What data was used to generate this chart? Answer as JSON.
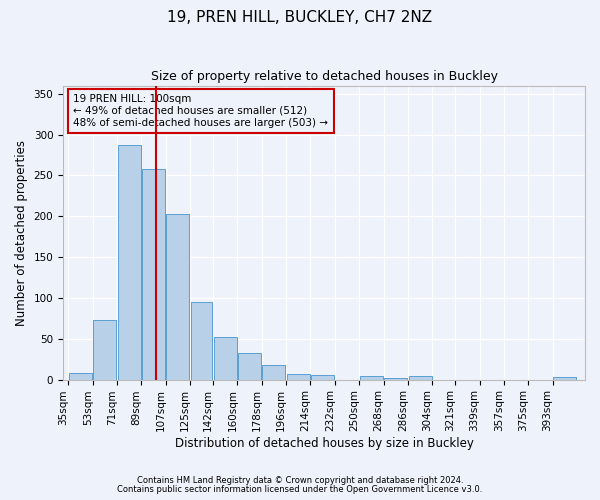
{
  "title1": "19, PREN HILL, BUCKLEY, CH7 2NZ",
  "title2": "Size of property relative to detached houses in Buckley",
  "xlabel": "Distribution of detached houses by size in Buckley",
  "ylabel": "Number of detached properties",
  "footnote1": "Contains HM Land Registry data © Crown copyright and database right 2024.",
  "footnote2": "Contains public sector information licensed under the Open Government Licence v3.0.",
  "annotation_line1": "19 PREN HILL: 100sqm",
  "annotation_line2": "← 49% of detached houses are smaller (512)",
  "annotation_line3": "48% of semi-detached houses are larger (503) →",
  "bar_color": "#b8d0e8",
  "bar_edge_color": "#5a9fd4",
  "red_line_x": 100,
  "red_line_color": "#cc0000",
  "categories": [
    "35sqm",
    "53sqm",
    "71sqm",
    "89sqm",
    "107sqm",
    "125sqm",
    "142sqm",
    "160sqm",
    "178sqm",
    "196sqm",
    "214sqm",
    "232sqm",
    "250sqm",
    "268sqm",
    "286sqm",
    "304sqm",
    "321sqm",
    "339sqm",
    "357sqm",
    "375sqm",
    "393sqm"
  ],
  "bin_edges": [
    35,
    53,
    71,
    89,
    107,
    125,
    142,
    160,
    178,
    196,
    214,
    232,
    250,
    268,
    286,
    304,
    321,
    339,
    357,
    375,
    393,
    411
  ],
  "values": [
    8,
    73,
    287,
    258,
    203,
    95,
    52,
    32,
    18,
    7,
    6,
    0,
    4,
    2,
    4,
    0,
    0,
    0,
    0,
    0,
    3
  ],
  "ylim": [
    0,
    360
  ],
  "yticks": [
    0,
    50,
    100,
    150,
    200,
    250,
    300,
    350
  ],
  "background_color": "#eef2fa",
  "grid_color": "#ffffff",
  "title1_fontsize": 11,
  "title2_fontsize": 9.5
}
